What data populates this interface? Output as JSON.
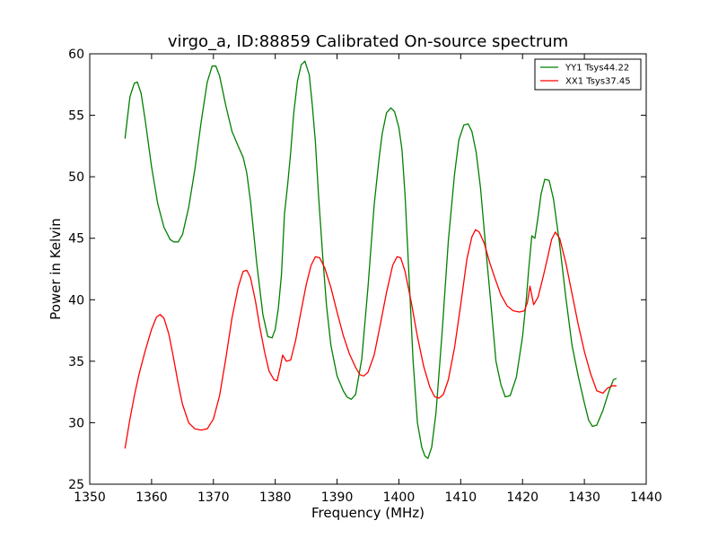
{
  "chart_data": {
    "type": "line",
    "title": "virgo_a, ID:88859 Calibrated On-source spectrum",
    "xlabel": "Frequency (MHz)",
    "ylabel": "Power in Kelvin",
    "xlim": [
      1350,
      1440
    ],
    "ylim": [
      25,
      60
    ],
    "xticks": [
      1350,
      1360,
      1370,
      1380,
      1390,
      1400,
      1410,
      1420,
      1430,
      1440
    ],
    "yticks": [
      25,
      30,
      35,
      40,
      45,
      50,
      55,
      60
    ],
    "grid": false,
    "legend_position": "top-right",
    "series": [
      {
        "name": "YY1 Tsys44.22",
        "color": "#008000",
        "x": [
          1355.7,
          1356.5,
          1357.2,
          1357.7,
          1358.3,
          1359.0,
          1360.0,
          1361.0,
          1362.0,
          1363.0,
          1363.6,
          1364.3,
          1365.0,
          1366.0,
          1367.0,
          1368.0,
          1369.0,
          1369.8,
          1370.4,
          1371.0,
          1372.0,
          1373.0,
          1374.0,
          1374.8,
          1375.4,
          1376.0,
          1377.0,
          1378.0,
          1378.8,
          1379.5,
          1380.0,
          1380.5,
          1381.0,
          1381.5,
          1382.0,
          1382.5,
          1383.0,
          1383.6,
          1384.2,
          1384.8,
          1385.5,
          1386.0,
          1386.5,
          1387.0,
          1387.7,
          1388.3,
          1389.0,
          1390.0,
          1391.0,
          1391.6,
          1392.3,
          1393.0,
          1394.0,
          1395.0,
          1396.0,
          1396.8,
          1397.3,
          1398.0,
          1398.7,
          1399.3,
          1400.0,
          1400.5,
          1401.0,
          1401.6,
          1402.3,
          1403.0,
          1403.7,
          1404.2,
          1404.7,
          1405.3,
          1406.0,
          1407.0,
          1408.0,
          1409.0,
          1409.7,
          1410.5,
          1411.2,
          1411.8,
          1412.5,
          1413.2,
          1414.0,
          1415.0,
          1415.7,
          1416.5,
          1417.2,
          1418.0,
          1419.0,
          1420.0,
          1420.6,
          1421.0,
          1421.5,
          1422.0,
          1422.5,
          1423.0,
          1423.6,
          1424.3,
          1425.0,
          1426.0,
          1427.0,
          1428.0,
          1429.0,
          1430.0,
          1430.7,
          1431.3,
          1432.0,
          1433.0,
          1434.0,
          1434.7,
          1435.2
        ],
        "y": [
          53.1,
          56.5,
          57.6,
          57.7,
          56.8,
          54.5,
          50.8,
          47.8,
          45.9,
          44.9,
          44.7,
          44.7,
          45.3,
          47.5,
          50.6,
          54.4,
          57.7,
          59.0,
          59.0,
          58.2,
          55.8,
          53.7,
          52.5,
          51.6,
          50.3,
          48.0,
          43.0,
          38.8,
          37.0,
          36.9,
          37.6,
          39.3,
          42.0,
          47.0,
          49.3,
          52.0,
          55.2,
          57.8,
          59.1,
          59.4,
          58.3,
          55.8,
          52.8,
          48.5,
          43.4,
          39.5,
          36.3,
          33.8,
          32.6,
          32.1,
          31.9,
          32.3,
          35.2,
          41.0,
          47.7,
          51.5,
          53.5,
          55.2,
          55.6,
          55.3,
          54.0,
          52.2,
          48.5,
          42.3,
          35.0,
          30.0,
          28.0,
          27.3,
          27.1,
          28.0,
          30.8,
          37.4,
          44.8,
          50.2,
          53.0,
          54.2,
          54.3,
          53.7,
          52.0,
          49.1,
          44.5,
          39.0,
          35.0,
          33.1,
          32.1,
          32.2,
          33.7,
          37.0,
          40.0,
          42.5,
          45.2,
          45.0,
          46.7,
          48.6,
          49.8,
          49.7,
          48.2,
          44.5,
          40.2,
          36.3,
          33.8,
          31.6,
          30.2,
          29.7,
          29.8,
          31.0,
          32.6,
          33.5,
          33.6
        ],
        "y_end": 33.3
      },
      {
        "name": "XX1 Tsys37.45",
        "color": "#ff0000",
        "x": [
          1355.7,
          1356.5,
          1357.3,
          1358.0,
          1359.0,
          1360.0,
          1360.8,
          1361.4,
          1362.0,
          1362.8,
          1363.5,
          1364.3,
          1365.0,
          1366.0,
          1367.0,
          1368.0,
          1369.0,
          1370.0,
          1371.0,
          1372.0,
          1373.0,
          1374.0,
          1374.8,
          1375.4,
          1376.0,
          1376.8,
          1377.5,
          1378.3,
          1379.0,
          1379.8,
          1380.3,
          1380.8,
          1381.2,
          1381.8,
          1382.5,
          1383.3,
          1384.0,
          1385.0,
          1385.8,
          1386.5,
          1387.2,
          1388.0,
          1389.0,
          1390.0,
          1391.0,
          1392.0,
          1393.0,
          1393.7,
          1394.3,
          1395.0,
          1396.0,
          1397.0,
          1398.0,
          1399.0,
          1399.7,
          1400.3,
          1401.0,
          1402.0,
          1403.0,
          1404.0,
          1405.0,
          1405.8,
          1406.5,
          1407.2,
          1408.0,
          1409.0,
          1410.0,
          1411.0,
          1411.8,
          1412.4,
          1413.0,
          1413.8,
          1414.7,
          1415.5,
          1416.5,
          1417.5,
          1418.5,
          1419.5,
          1420.3,
          1420.8,
          1421.2,
          1421.8,
          1422.5,
          1423.3,
          1424.0,
          1424.7,
          1425.3,
          1426.0,
          1427.0,
          1428.0,
          1429.0,
          1430.0,
          1431.0,
          1432.0,
          1433.0,
          1433.7,
          1434.5,
          1435.2
        ],
        "y": [
          27.9,
          30.3,
          32.4,
          34.0,
          35.9,
          37.6,
          38.6,
          38.8,
          38.5,
          37.2,
          35.4,
          33.2,
          31.5,
          30.0,
          29.5,
          29.4,
          29.5,
          30.3,
          32.2,
          35.2,
          38.5,
          41.0,
          42.3,
          42.4,
          41.8,
          39.9,
          37.8,
          35.7,
          34.2,
          33.5,
          33.4,
          34.5,
          35.5,
          35.0,
          35.1,
          36.7,
          38.6,
          41.2,
          42.8,
          43.5,
          43.4,
          42.6,
          41.0,
          39.0,
          37.1,
          35.6,
          34.5,
          33.9,
          33.8,
          34.1,
          35.5,
          38.0,
          40.6,
          42.8,
          43.5,
          43.4,
          42.3,
          39.8,
          37.0,
          34.6,
          32.9,
          32.1,
          32.0,
          32.3,
          33.5,
          36.1,
          39.6,
          43.3,
          45.1,
          45.7,
          45.5,
          44.6,
          43.0,
          41.8,
          40.4,
          39.5,
          39.1,
          39.0,
          39.1,
          39.8,
          41.1,
          39.6,
          40.2,
          41.8,
          43.3,
          44.9,
          45.5,
          45.0,
          43.0,
          40.5,
          38.0,
          35.8,
          34.0,
          32.6,
          32.4,
          32.8,
          33.0,
          33.0
        ]
      }
    ]
  }
}
